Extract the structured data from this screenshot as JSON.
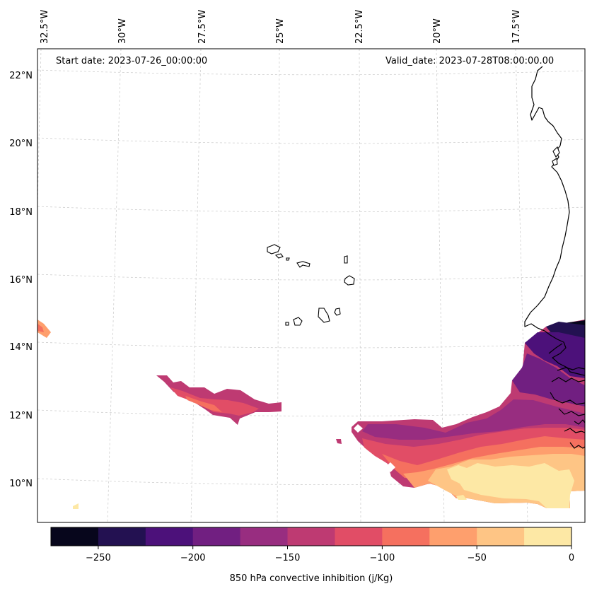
{
  "header": {
    "start_date": "Start date: 2023-07-26_00:00:00",
    "valid_date": "Valid_date: 2023-07-28T08:00:00.00"
  },
  "longitude_labels": [
    "32.5°W",
    "30°W",
    "27.5°W",
    "25°W",
    "22.5°W",
    "20°W",
    "17.5°W"
  ],
  "latitude_labels": [
    "22°N",
    "20°N",
    "18°N",
    "16°N",
    "14°N",
    "12°N",
    "10°N"
  ],
  "colorbar": {
    "label": "850 hPa convective inhibition (j/Kg)",
    "tick_labels": [
      "−250",
      "−200",
      "−150",
      "−100",
      "−50",
      "0"
    ],
    "bounds": [
      -275,
      0
    ],
    "levels": [
      -275,
      -250,
      -225,
      -200,
      -175,
      -150,
      -125,
      -100,
      -75,
      -50,
      -25,
      0
    ],
    "colors": [
      "#07061c",
      "#231151",
      "#4c117a",
      "#711f81",
      "#982d80",
      "#be3a72",
      "#e14d66",
      "#f5705f",
      "#fe9f6d",
      "#fec585",
      "#fde8a5"
    ]
  }
}
